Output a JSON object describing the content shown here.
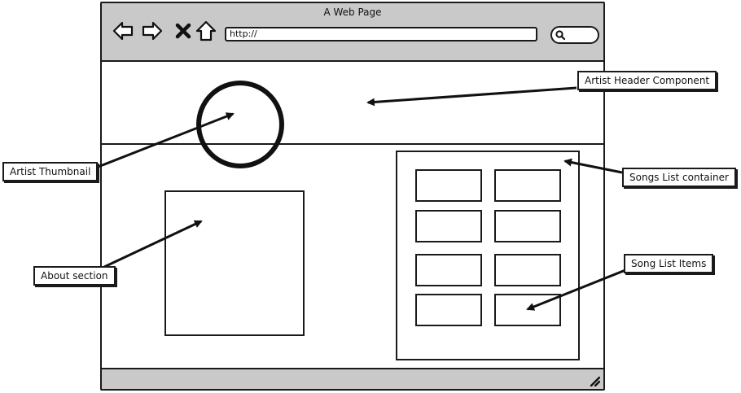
{
  "window": {
    "title": "A Web Page"
  },
  "toolbar": {
    "url_value": "http://",
    "nav_icons": [
      "back-icon",
      "forward-icon",
      "close-icon",
      "home-icon"
    ],
    "search_icon": "search-icon"
  },
  "annotations": {
    "artist_header": "Artist Header Component",
    "artist_thumbnail": "Artist Thumbnail",
    "songs_list_container": "Songs List container",
    "about_section": "About section",
    "song_list_items": "Song List Items"
  },
  "songs": {
    "items": [
      "",
      "",
      "",
      "",
      "",
      "",
      "",
      ""
    ]
  },
  "colors": {
    "chrome": "#c9c9c9",
    "stroke": "#1a1a1a",
    "background": "#ffffff"
  }
}
